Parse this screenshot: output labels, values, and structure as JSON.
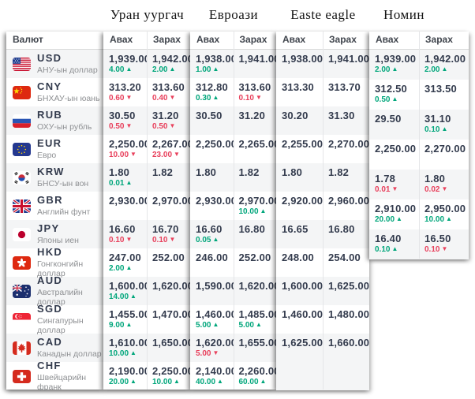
{
  "header": {
    "currency_column_title": "Валют",
    "buy_label": "Авах",
    "sell_label": "Зарах"
  },
  "colors": {
    "up": "#00a67b",
    "down": "#e8405c",
    "stripe": "#f4f5f6"
  },
  "icons": {
    "up_arrow": "▲",
    "down_arrow": "▼"
  },
  "currencies": [
    {
      "code": "USD",
      "name": "АНУ-ын доллар"
    },
    {
      "code": "CNY",
      "name": "БНХАУ-ын юань"
    },
    {
      "code": "RUB",
      "name": "ОХУ-ын рубль"
    },
    {
      "code": "EUR",
      "name": "Евро"
    },
    {
      "code": "KRW",
      "name": "БНСУ-ын вон"
    },
    {
      "code": "GBR",
      "name": "Английн фунт"
    },
    {
      "code": "JPY",
      "name": "Японы иен"
    },
    {
      "code": "HKD",
      "name": "Гонгконгийн доллар"
    },
    {
      "code": "AUD",
      "name": "Австралийн доллар"
    },
    {
      "code": "SGD",
      "name": "Сингапурын доллар"
    },
    {
      "code": "CAD",
      "name": "Канадын доллар"
    },
    {
      "code": "CHF",
      "name": "Швейцарийн франк"
    }
  ],
  "exchanges": [
    {
      "name": "Уран уургач",
      "rates": [
        {
          "buy": "1,939.00",
          "buy_change": "4.00",
          "buy_dir": "up",
          "sell": "1,942.00",
          "sell_change": "2.00",
          "sell_dir": "up"
        },
        {
          "buy": "313.20",
          "buy_change": "0.60",
          "buy_dir": "down",
          "sell": "313.60",
          "sell_change": "0.40",
          "sell_dir": "down"
        },
        {
          "buy": "30.50",
          "buy_change": "0.50",
          "buy_dir": "down",
          "sell": "31.20",
          "sell_change": "0.50",
          "sell_dir": "down"
        },
        {
          "buy": "2,250.00",
          "buy_change": "10.00",
          "buy_dir": "down",
          "sell": "2,267.00",
          "sell_change": "23.00",
          "sell_dir": "down"
        },
        {
          "buy": "1.80",
          "buy_change": "0.01",
          "buy_dir": "up",
          "sell": "1.82",
          "sell_change": "",
          "sell_dir": ""
        },
        {
          "buy": "2,930.00",
          "buy_change": "",
          "buy_dir": "",
          "sell": "2,970.00",
          "sell_change": "",
          "sell_dir": ""
        },
        {
          "buy": "16.60",
          "buy_change": "0.10",
          "buy_dir": "down",
          "sell": "16.70",
          "sell_change": "0.10",
          "sell_dir": "down"
        },
        {
          "buy": "247.00",
          "buy_change": "2.00",
          "buy_dir": "up",
          "sell": "252.00",
          "sell_change": "",
          "sell_dir": ""
        },
        {
          "buy": "1,600.00",
          "buy_change": "14.00",
          "buy_dir": "up",
          "sell": "1,620.00",
          "sell_change": "",
          "sell_dir": ""
        },
        {
          "buy": "1,455.00",
          "buy_change": "9.00",
          "buy_dir": "up",
          "sell": "1,470.00",
          "sell_change": "",
          "sell_dir": ""
        },
        {
          "buy": "1,610.00",
          "buy_change": "10.00",
          "buy_dir": "up",
          "sell": "1,650.00",
          "sell_change": "",
          "sell_dir": ""
        },
        {
          "buy": "2,190.00",
          "buy_change": "20.00",
          "buy_dir": "up",
          "sell": "2,250.00",
          "sell_change": "10.00",
          "sell_dir": "up"
        }
      ]
    },
    {
      "name": "Евроази",
      "rates": [
        {
          "buy": "1,938.00",
          "buy_change": "1.00",
          "buy_dir": "up",
          "sell": "1,941.00",
          "sell_change": "",
          "sell_dir": ""
        },
        {
          "buy": "312.80",
          "buy_change": "0.30",
          "buy_dir": "up",
          "sell": "313.60",
          "sell_change": "0.10",
          "sell_dir": "down"
        },
        {
          "buy": "30.50",
          "buy_change": "",
          "buy_dir": "",
          "sell": "31.20",
          "sell_change": "",
          "sell_dir": ""
        },
        {
          "buy": "2,250.00",
          "buy_change": "",
          "buy_dir": "",
          "sell": "2,265.00",
          "sell_change": "",
          "sell_dir": ""
        },
        {
          "buy": "1.80",
          "buy_change": "",
          "buy_dir": "",
          "sell": "1.82",
          "sell_change": "",
          "sell_dir": ""
        },
        {
          "buy": "2,930.00",
          "buy_change": "",
          "buy_dir": "",
          "sell": "2,970.00",
          "sell_change": "10.00",
          "sell_dir": "up"
        },
        {
          "buy": "16.60",
          "buy_change": "0.05",
          "buy_dir": "up",
          "sell": "16.80",
          "sell_change": "",
          "sell_dir": ""
        },
        {
          "buy": "246.00",
          "buy_change": "",
          "buy_dir": "",
          "sell": "252.00",
          "sell_change": "",
          "sell_dir": ""
        },
        {
          "buy": "1,590.00",
          "buy_change": "",
          "buy_dir": "",
          "sell": "1,620.00",
          "sell_change": "",
          "sell_dir": ""
        },
        {
          "buy": "1,460.00",
          "buy_change": "5.00",
          "buy_dir": "up",
          "sell": "1,485.00",
          "sell_change": "5.00",
          "sell_dir": "up"
        },
        {
          "buy": "1,620.00",
          "buy_change": "5.00",
          "buy_dir": "down",
          "sell": "1,655.00",
          "sell_change": "",
          "sell_dir": ""
        },
        {
          "buy": "2,140.00",
          "buy_change": "40.00",
          "buy_dir": "up",
          "sell": "2,260.00",
          "sell_change": "60.00",
          "sell_dir": "up"
        }
      ]
    },
    {
      "name": "Easte eagle",
      "rates": [
        {
          "buy": "1,938.00",
          "buy_change": "",
          "buy_dir": "",
          "sell": "1,941.00",
          "sell_change": "",
          "sell_dir": ""
        },
        {
          "buy": "313.30",
          "buy_change": "",
          "buy_dir": "",
          "sell": "313.70",
          "sell_change": "",
          "sell_dir": ""
        },
        {
          "buy": "30.20",
          "buy_change": "",
          "buy_dir": "",
          "sell": "31.30",
          "sell_change": "",
          "sell_dir": ""
        },
        {
          "buy": "2,255.00",
          "buy_change": "",
          "buy_dir": "",
          "sell": "2,270.00",
          "sell_change": "",
          "sell_dir": ""
        },
        {
          "buy": "1.80",
          "buy_change": "",
          "buy_dir": "",
          "sell": "1.82",
          "sell_change": "",
          "sell_dir": ""
        },
        {
          "buy": "2,920.00",
          "buy_change": "",
          "buy_dir": "",
          "sell": "2,960.00",
          "sell_change": "",
          "sell_dir": ""
        },
        {
          "buy": "16.65",
          "buy_change": "",
          "buy_dir": "",
          "sell": "16.80",
          "sell_change": "",
          "sell_dir": ""
        },
        {
          "buy": "248.00",
          "buy_change": "",
          "buy_dir": "",
          "sell": "254.00",
          "sell_change": "",
          "sell_dir": ""
        },
        {
          "buy": "1,600.00",
          "buy_change": "",
          "buy_dir": "",
          "sell": "1,625.00",
          "sell_change": "",
          "sell_dir": ""
        },
        {
          "buy": "1,460.00",
          "buy_change": "",
          "buy_dir": "",
          "sell": "1,480.00",
          "sell_change": "",
          "sell_dir": ""
        },
        {
          "buy": "1,625.00",
          "buy_change": "",
          "buy_dir": "",
          "sell": "1,660.00",
          "sell_change": "",
          "sell_dir": ""
        },
        {
          "buy": "",
          "buy_change": "",
          "buy_dir": "",
          "sell": "",
          "sell_change": "",
          "sell_dir": ""
        }
      ]
    },
    {
      "name": "Номин",
      "rates": [
        {
          "buy": "1,939.00",
          "buy_change": "2.00",
          "buy_dir": "up",
          "sell": "1,942.00",
          "sell_change": "2.00",
          "sell_dir": "up"
        },
        {
          "buy": "312.50",
          "buy_change": "0.50",
          "buy_dir": "up",
          "sell": "313.50",
          "sell_change": "",
          "sell_dir": ""
        },
        {
          "buy": "29.50",
          "buy_change": "",
          "buy_dir": "",
          "sell": "31.10",
          "sell_change": "0.10",
          "sell_dir": "up"
        },
        {
          "buy": "2,250.00",
          "buy_change": "",
          "buy_dir": "",
          "sell": "2,270.00",
          "sell_change": "",
          "sell_dir": ""
        },
        {
          "buy": "1.78",
          "buy_change": "0.01",
          "buy_dir": "down",
          "sell": "1.80",
          "sell_change": "0.02",
          "sell_dir": "down"
        },
        {
          "buy": "2,910.00",
          "buy_change": "20.00",
          "buy_dir": "up",
          "sell": "2,950.00",
          "sell_change": "10.00",
          "sell_dir": "up"
        },
        {
          "buy": "16.40",
          "buy_change": "0.10",
          "buy_dir": "up",
          "sell": "16.50",
          "sell_change": "0.10",
          "sell_dir": "down"
        }
      ]
    }
  ]
}
